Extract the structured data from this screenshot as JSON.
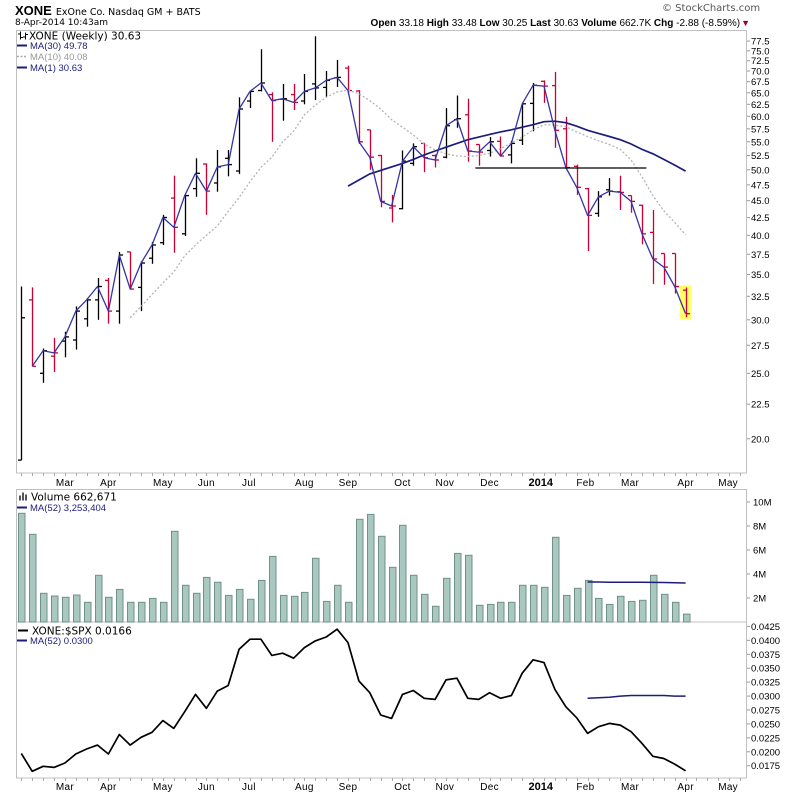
{
  "header": {
    "symbol": "XONE",
    "company": "ExOne Co. Nasdaq GM + BATS",
    "datetime": "8-Apr-2014 10:43am",
    "copyright": "© StockCharts.com",
    "quote": {
      "open_label": "Open",
      "open": "33.18",
      "high_label": "High",
      "high": "33.48",
      "low_label": "Low",
      "low": "30.25",
      "last_label": "Last",
      "last": "30.63",
      "volume_label": "Volume",
      "volume": "662.7K",
      "chg_label": "Chg",
      "chg": "-2.88 (-8.59%)",
      "direction_icon": "down-triangle-icon"
    }
  },
  "colors": {
    "up_bar": "#000000",
    "down_bar": "#cc0033",
    "ma1": "#3434a4",
    "ma10": "#b4b4b4",
    "ma30": "#1c1c7e",
    "trendline": "#000000",
    "highlight": "#ffff66",
    "volume_fill": "#a9c8bf",
    "volume_stroke": "#6f9188",
    "volume_ma": "#1c1c7e",
    "ratio_line": "#000000",
    "ratio_ma": "#1c1c7e",
    "panel_border": "#c0c0c0",
    "chg_down": "#99002a"
  },
  "x_axis": {
    "ticks": [
      {
        "label": "Mar",
        "bar_index": 4.0
      },
      {
        "label": "Apr",
        "bar_index": 8.0
      },
      {
        "label": "May",
        "bar_index": 13.0
      },
      {
        "label": "Jun",
        "bar_index": 17.0
      },
      {
        "label": "Jul",
        "bar_index": 20.9
      },
      {
        "label": "Aug",
        "bar_index": 26.0
      },
      {
        "label": "Sep",
        "bar_index": 30.0
      },
      {
        "label": "Oct",
        "bar_index": 35.0
      },
      {
        "label": "Nov",
        "bar_index": 38.9
      },
      {
        "label": "Dec",
        "bar_index": 43.0
      },
      {
        "label": "2014",
        "bar_index": 47.7
      },
      {
        "label": "Feb",
        "bar_index": 51.8
      },
      {
        "label": "Mar",
        "bar_index": 55.9
      },
      {
        "label": "Apr",
        "bar_index": 61.0
      },
      {
        "label": "May",
        "bar_index": 64.9
      }
    ]
  },
  "chart_data": [
    {
      "type": "ohlc",
      "panel": "price",
      "scale": "log",
      "ylim": [
        17.8,
        80.5
      ],
      "legend": [
        {
          "label": "XONE (Weekly) 30.63"
        },
        {
          "label": "MA(30) 49.78"
        },
        {
          "label": "MA(10) 40.08"
        },
        {
          "label": "MA(1) 30.63"
        }
      ],
      "y_ticks": [
        "77.5",
        "75.0",
        "72.5",
        "70.0",
        "67.5",
        "65.0",
        "62.5",
        "60.0",
        "57.5",
        "55.0",
        "52.5",
        "50.0",
        "47.5",
        "45.0",
        "42.5",
        "40.0",
        "37.5",
        "35.0",
        "32.5",
        "30.0",
        "27.5",
        "25.0",
        "22.5",
        "20.0"
      ],
      "bars": {
        "open": [
          18.6,
          32.1,
          25.0,
          26.5,
          27.9,
          28.0,
          30.1,
          32.1,
          34.3,
          30.9,
          37.8,
          33.5,
          37.0,
          39.0,
          45.4,
          40.2,
          46.9,
          51.0,
          47.8,
          52.0,
          49.8,
          63.2,
          65.5,
          64.6,
          63.6,
          64.6,
          63.2,
          67.0,
          66.2,
          68.4,
          70.7,
          65.4,
          57.3,
          52.5,
          43.9,
          43.8,
          51.1,
          54.7,
          52.5,
          52.2,
          59.3,
          60.3,
          54.5,
          53.4,
          55.1,
          52.6,
          55.3,
          62.7,
          67.6,
          66.6,
          57.5,
          50.6,
          46.9,
          43.1,
          46.7,
          46.4,
          45.8,
          44.3,
          40.4,
          37.6,
          37.6,
          33.18
        ],
        "high": [
          33.6,
          33.5,
          27.2,
          28.2,
          28.8,
          31.4,
          32.3,
          34.6,
          34.6,
          37.8,
          37.8,
          36.6,
          39.1,
          42.9,
          49.0,
          46.0,
          52.0,
          51.1,
          53.5,
          53.5,
          64.0,
          65.4,
          75.4,
          65.1,
          67.0,
          67.0,
          69.3,
          78.8,
          70.0,
          72.7,
          71.3,
          65.6,
          57.3,
          52.6,
          45.9,
          53.4,
          54.7,
          54.8,
          52.7,
          61.7,
          64.4,
          63.7,
          54.5,
          55.9,
          56.0,
          55.2,
          62.7,
          67.2,
          67.8,
          69.8,
          59.9,
          50.9,
          47.0,
          46.5,
          48.6,
          49.0,
          45.8,
          44.4,
          43.6,
          37.6,
          37.6,
          33.48
        ],
        "low": [
          18.6,
          25.6,
          24.2,
          25.1,
          26.4,
          27.1,
          29.3,
          30.0,
          29.6,
          29.6,
          33.3,
          30.9,
          36.3,
          38.7,
          37.7,
          39.9,
          45.6,
          42.9,
          46.4,
          48.9,
          49.3,
          61.7,
          65.3,
          55.0,
          59.1,
          61.3,
          62.5,
          63.4,
          64.0,
          66.3,
          64.6,
          54.6,
          50.0,
          44.0,
          41.8,
          43.7,
          50.7,
          49.6,
          50.4,
          52.0,
          57.7,
          51.4,
          50.7,
          52.3,
          52.3,
          51.1,
          54.4,
          57.0,
          62.8,
          53.9,
          50.4,
          45.9,
          37.9,
          42.6,
          45.8,
          43.6,
          43.2,
          38.8,
          33.9,
          33.8,
          32.8,
          30.25
        ],
        "close": [
          30.2,
          25.6,
          27.0,
          26.8,
          28.3,
          30.9,
          32.1,
          33.6,
          30.9,
          37.4,
          33.3,
          36.4,
          38.7,
          42.5,
          41.1,
          45.8,
          49.4,
          46.5,
          50.5,
          50.9,
          61.5,
          65.3,
          67.2,
          63.3,
          63.7,
          62.9,
          65.3,
          66.1,
          67.8,
          68.5,
          65.5,
          55.0,
          52.2,
          44.9,
          44.2,
          51.5,
          54.1,
          52.1,
          51.7,
          58.1,
          59.5,
          53.3,
          53.1,
          55.0,
          52.4,
          54.7,
          62.6,
          66.7,
          66.5,
          57.2,
          50.4,
          47.1,
          42.8,
          45.6,
          46.5,
          46.3,
          44.9,
          40.2,
          36.9,
          35.9,
          33.6,
          30.63
        ]
      },
      "ma1": {
        "period": 1,
        "start_index": 1
      },
      "ma10": {
        "period": 10,
        "start_index": 10,
        "values": [
          30.2,
          31.4,
          32.7,
          34.0,
          35.3,
          37.3,
          38.7,
          40.0,
          41.3,
          43.4,
          45.5,
          48.0,
          50.4,
          52.2,
          55.0,
          57.0,
          60.3,
          62.3,
          64.0,
          65.2,
          65.6,
          64.8,
          63.3,
          61.5,
          59.3,
          57.8,
          56.3,
          54.6,
          53.5,
          52.8,
          52.4,
          52.3,
          52.5,
          52.9,
          53.7,
          54.8,
          55.9,
          57.3,
          58.3,
          58.2,
          57.9,
          56.9,
          56.0,
          55.2,
          54.5,
          53.6,
          51.7,
          48.8,
          45.8,
          43.5,
          41.8,
          40.08
        ]
      },
      "ma30": {
        "period": 30,
        "start_index": 30,
        "values": [
          47.3,
          48.3,
          49.3,
          49.9,
          50.5,
          51.1,
          51.8,
          52.6,
          53.3,
          54.0,
          54.7,
          55.4,
          55.9,
          56.4,
          56.9,
          57.3,
          57.8,
          58.3,
          58.9,
          59.0,
          58.7,
          58.0,
          57.2,
          56.6,
          56.0,
          55.4,
          54.6,
          53.6,
          52.8,
          51.8,
          50.8,
          49.78
        ]
      },
      "trendline": {
        "value": 50.3,
        "from_index": 41.7,
        "to_index": 57.4
      },
      "highlight_last": true
    },
    {
      "type": "bar",
      "panel": "volume",
      "unit": "M",
      "ylim": [
        0,
        11
      ],
      "legend": [
        {
          "label": "Volume 662,671"
        },
        {
          "label": "MA(52) 3,253,404"
        }
      ],
      "y_ticks": [
        {
          "label": "10M",
          "value": 10
        },
        {
          "label": "8M",
          "value": 8
        },
        {
          "label": "6M",
          "value": 6
        },
        {
          "label": "4M",
          "value": 4
        },
        {
          "label": "2M",
          "value": 2
        }
      ],
      "values": [
        9.06,
        7.31,
        2.39,
        2.17,
        2.06,
        2.25,
        1.64,
        3.89,
        2.06,
        2.72,
        1.64,
        1.64,
        1.97,
        1.64,
        7.56,
        3.06,
        2.39,
        3.72,
        3.31,
        2.22,
        2.72,
        1.89,
        3.47,
        5.47,
        2.22,
        2.14,
        2.47,
        5.31,
        1.72,
        3.06,
        1.64,
        8.56,
        8.97,
        7.14,
        4.56,
        8.06,
        3.89,
        2.31,
        1.31,
        3.64,
        5.72,
        5.56,
        1.39,
        1.47,
        1.64,
        1.64,
        3.06,
        3.06,
        2.89,
        7.06,
        2.22,
        2.81,
        3.47,
        1.97,
        1.47,
        2.14,
        1.72,
        1.81,
        3.89,
        2.31,
        1.64,
        0.66
      ],
      "ma52": {
        "period": 52,
        "start_index": 52,
        "values": [
          3.33,
          3.33,
          3.32,
          3.32,
          3.31,
          3.31,
          3.3,
          3.29,
          3.27,
          3.25
        ]
      }
    },
    {
      "type": "line",
      "panel": "ratio",
      "ylim": [
        0.0153,
        0.0432
      ],
      "legend": [
        {
          "label": "XONE:$SPX 0.0166"
        },
        {
          "label": "MA(52) 0.0300"
        }
      ],
      "y_ticks": [
        "0.0425",
        "0.0400",
        "0.0375",
        "0.0350",
        "0.0325",
        "0.0300",
        "0.0275",
        "0.0250",
        "0.0225",
        "0.0200",
        "0.0175"
      ],
      "values": [
        0.0197,
        0.0165,
        0.0174,
        0.0172,
        0.018,
        0.0196,
        0.0205,
        0.0212,
        0.0196,
        0.0231,
        0.0212,
        0.0226,
        0.0235,
        0.0256,
        0.0242,
        0.0272,
        0.0303,
        0.0278,
        0.0309,
        0.0319,
        0.0384,
        0.0402,
        0.0402,
        0.0373,
        0.0377,
        0.0368,
        0.0387,
        0.0399,
        0.0406,
        0.042,
        0.0396,
        0.0327,
        0.0306,
        0.0266,
        0.026,
        0.0303,
        0.031,
        0.0296,
        0.0294,
        0.0329,
        0.0332,
        0.0296,
        0.0294,
        0.0306,
        0.0296,
        0.0301,
        0.0341,
        0.0365,
        0.036,
        0.0312,
        0.0281,
        0.0261,
        0.0233,
        0.0245,
        0.0251,
        0.0248,
        0.0236,
        0.0215,
        0.0192,
        0.0188,
        0.0178,
        0.0166
      ],
      "ma52": {
        "period": 52,
        "start_index": 52,
        "values": [
          0.0296,
          0.0297,
          0.0298,
          0.03,
          0.0301,
          0.0301,
          0.0301,
          0.0301,
          0.03,
          0.03
        ]
      }
    }
  ]
}
